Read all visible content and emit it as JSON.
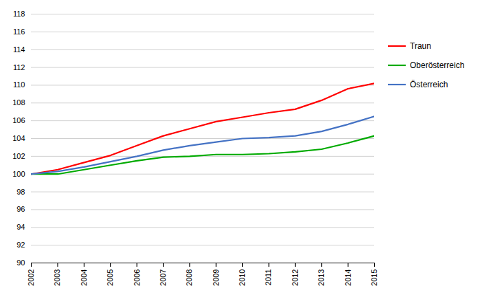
{
  "chart_data": {
    "type": "line",
    "x": [
      2002,
      2003,
      2004,
      2005,
      2006,
      2007,
      2008,
      2009,
      2010,
      2011,
      2012,
      2013,
      2014,
      2015
    ],
    "series": [
      {
        "name": "Traun",
        "color": "#ff0000",
        "values": [
          100.0,
          100.5,
          101.3,
          102.1,
          103.2,
          104.3,
          105.1,
          105.9,
          106.4,
          106.9,
          107.3,
          108.3,
          109.6,
          110.2
        ]
      },
      {
        "name": "Oberösterreich",
        "color": "#00aa00",
        "values": [
          100.0,
          100.0,
          100.5,
          101.0,
          101.5,
          101.9,
          102.0,
          102.2,
          102.2,
          102.3,
          102.5,
          102.8,
          103.5,
          104.3
        ]
      },
      {
        "name": "Österreich",
        "color": "#4472c4",
        "values": [
          100.0,
          100.3,
          100.8,
          101.4,
          102.0,
          102.7,
          103.2,
          103.6,
          104.0,
          104.1,
          104.3,
          104.8,
          105.6,
          106.5
        ]
      }
    ],
    "xlim": [
      2002,
      2015
    ],
    "xticks": [
      2002,
      2003,
      2004,
      2005,
      2006,
      2007,
      2008,
      2009,
      2010,
      2011,
      2012,
      2013,
      2014,
      2015
    ],
    "ylim": [
      90,
      118
    ],
    "yticks": [
      90,
      92,
      94,
      96,
      98,
      100,
      102,
      104,
      106,
      108,
      110,
      112,
      114,
      116,
      118
    ],
    "grid": true,
    "legend": "right"
  }
}
